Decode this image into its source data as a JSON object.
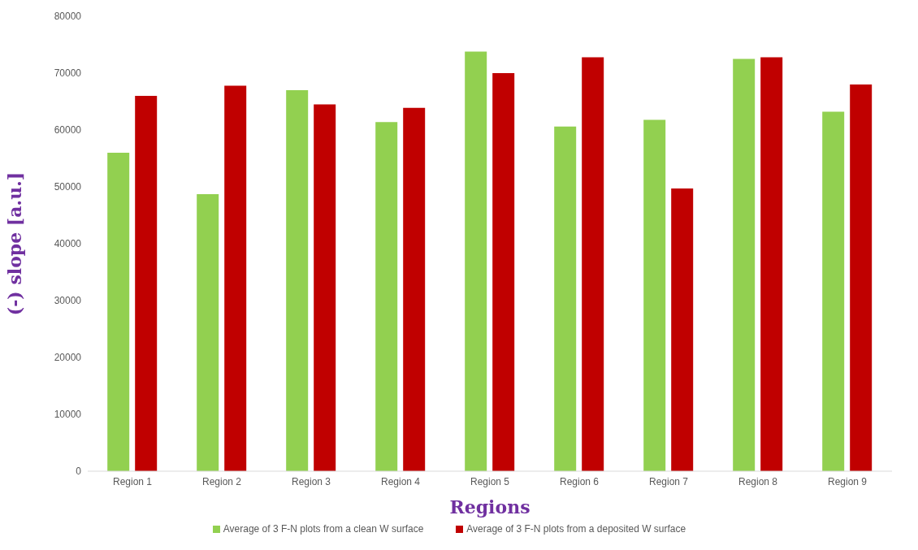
{
  "chart_data": {
    "type": "bar",
    "xlabel": "Regions",
    "ylabel": "(-) slope [a.u.]",
    "categories": [
      "Region 1",
      "Region 2",
      "Region 3",
      "Region 4",
      "Region 5",
      "Region 6",
      "Region 7",
      "Region 8",
      "Region 9"
    ],
    "series": [
      {
        "name": "Average of 3 F-N plots from a clean W surface",
        "color": "#92d050",
        "values": [
          56000,
          48700,
          67000,
          61400,
          73800,
          60600,
          61800,
          72500,
          63200
        ]
      },
      {
        "name": "Average of 3 F-N plots from a deposited W surface",
        "color": "#c00000",
        "values": [
          66000,
          67800,
          64500,
          63900,
          70000,
          72800,
          49700,
          72800,
          68000
        ]
      }
    ],
    "ylim": [
      0,
      80000
    ],
    "yticks": [
      0,
      10000,
      20000,
      30000,
      40000,
      50000,
      60000,
      70000,
      80000
    ],
    "grid": false,
    "legend": "bottom"
  }
}
